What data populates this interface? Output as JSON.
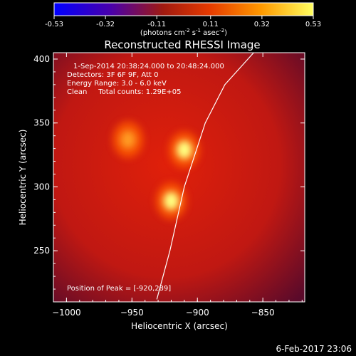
{
  "chart_data": {
    "type": "heatmap",
    "title": "Reconstructed RHESSI Image",
    "xlabel": "Heliocentric X (arcsec)",
    "ylabel": "Heliocentric Y (arcsec)",
    "xlim": [
      -1010,
      -818
    ],
    "ylim": [
      210,
      405
    ],
    "x_ticks": [
      -1000,
      -950,
      -900,
      -850
    ],
    "y_ticks": [
      250,
      300,
      350,
      400
    ],
    "colorbar": {
      "ticks": [
        "-0.53",
        "-0.32",
        "-0.11",
        "0.11",
        "0.32",
        "0.53"
      ],
      "range": [
        -0.53,
        0.53
      ],
      "unit_label_parts": [
        "(photons cm",
        "-2",
        " s",
        "-1",
        " asec",
        "-2",
        ")"
      ]
    },
    "annotations": [
      "1-Sep-2014 20:38:24.000 to 20:48:24.000",
      "Detectors: 3F 6F 9F, Att 0",
      "Energy Range: 3.0 - 6.0 keV",
      "Clean     Total counts: 1.29E+05"
    ],
    "peak_text": "Position of Peak = [-920,289]",
    "peak_position": [
      -920,
      289
    ],
    "sources": [
      {
        "x": -920,
        "y": 289,
        "intensity": 0.53
      },
      {
        "x": -910,
        "y": 329,
        "intensity": 0.47
      },
      {
        "x": -953,
        "y": 337,
        "intensity": 0.33
      }
    ],
    "limb_curve": [
      [
        -931,
        212
      ],
      [
        -921,
        250
      ],
      [
        -910,
        300
      ],
      [
        -894,
        350
      ],
      [
        -879,
        380
      ],
      [
        -857,
        405
      ]
    ],
    "footer_date": "6-Feb-2017 23:06"
  }
}
